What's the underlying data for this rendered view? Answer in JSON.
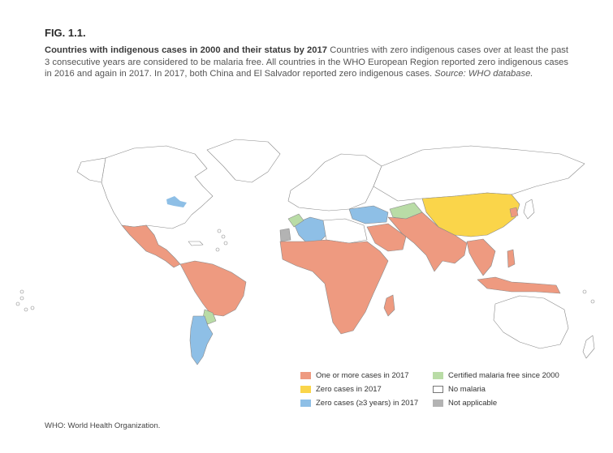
{
  "figure": {
    "label": "FIG. 1.1.",
    "title": "Countries with indigenous cases in 2000 and their status by 2017",
    "description": "Countries with zero indigenous cases over at least the past 3 consecutive years are considered to be malaria free. All countries in the WHO European Region reported zero indigenous cases in 2016 and again in 2017. In 2017, both China and El Salvador reported zero indigenous cases.",
    "source": "Source: WHO database."
  },
  "colors": {
    "cases": "#ee9a80",
    "zero2017": "#fad54a",
    "zero3years": "#8ebfe6",
    "certified": "#b9dca6",
    "nomalaria": "#ffffff",
    "na": "#b3b3b3",
    "border": "#888888"
  },
  "legend": [
    {
      "label": "One or more cases in 2017",
      "color": "#ee9a80"
    },
    {
      "label": "Zero cases in 2017",
      "color": "#fad54a"
    },
    {
      "label": "Zero cases (≥3 years) in 2017",
      "color": "#8ebfe6"
    },
    {
      "label": "Certified malaria free since 2000",
      "color": "#b9dca6"
    },
    {
      "label": "No malaria",
      "color": "#ffffff"
    },
    {
      "label": "Not applicable",
      "color": "#b3b3b3"
    }
  ],
  "footer": "WHO: World Health Organization."
}
